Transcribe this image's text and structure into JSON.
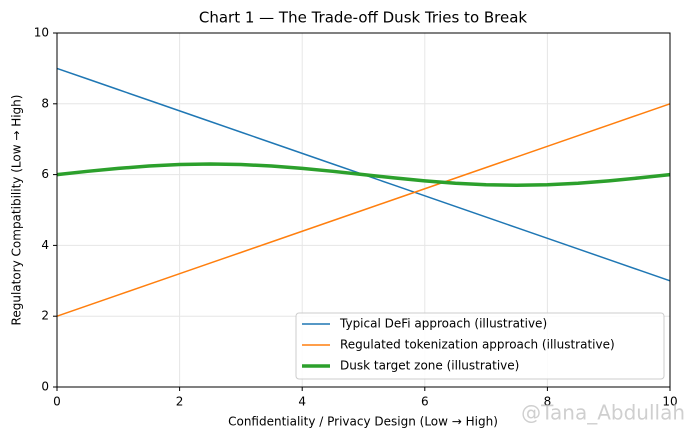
{
  "chart_data": {
    "type": "line",
    "title": "Chart 1 — The Trade-off Dusk Tries to Break",
    "x_label": "Confidentiality / Privacy Design (Low → High)",
    "y_label": "Regulatory Compatibility (Low → High)",
    "x": [
      0,
      0.5,
      1,
      1.5,
      2,
      2.5,
      3,
      3.5,
      4,
      4.5,
      5,
      5.5,
      6,
      6.5,
      7,
      7.5,
      8,
      8.5,
      9,
      9.5,
      10
    ],
    "series": [
      {
        "name": "Typical DeFi approach (illustrative)",
        "color": "#1f77b4",
        "width": 1.5,
        "values": [
          9,
          8.7,
          8.4,
          8.1,
          7.8,
          7.5,
          7.2,
          6.9,
          6.6,
          6.3,
          6,
          5.7,
          5.4,
          5.1,
          4.8,
          4.5,
          4.2,
          3.9,
          3.6,
          3.3,
          3
        ]
      },
      {
        "name": "Regulated tokenization approach (illustrative)",
        "color": "#ff7f0e",
        "width": 1.5,
        "values": [
          2,
          2.3,
          2.6,
          2.9,
          3.2,
          3.5,
          3.8,
          4.1,
          4.4,
          4.7,
          5,
          5.3,
          5.6,
          5.9,
          6.2,
          6.5,
          6.8,
          7.1,
          7.4,
          7.7,
          8
        ]
      },
      {
        "name": "Dusk target zone (illustrative)",
        "color": "#2ca02c",
        "width": 3.5,
        "values": [
          6,
          6.093,
          6.176,
          6.243,
          6.285,
          6.3,
          6.285,
          6.243,
          6.176,
          6.093,
          6,
          5.907,
          5.824,
          5.757,
          5.715,
          5.7,
          5.715,
          5.757,
          5.824,
          5.907,
          6
        ]
      }
    ],
    "xlim": [
      0,
      10
    ],
    "xticks": [
      0,
      2,
      4,
      6,
      8,
      10
    ],
    "ylim": [
      0,
      10
    ],
    "yticks": [
      0,
      2,
      4,
      6,
      8,
      10
    ],
    "grid": true,
    "legend": "lower right",
    "watermark": "@Tana_Abdullah"
  }
}
